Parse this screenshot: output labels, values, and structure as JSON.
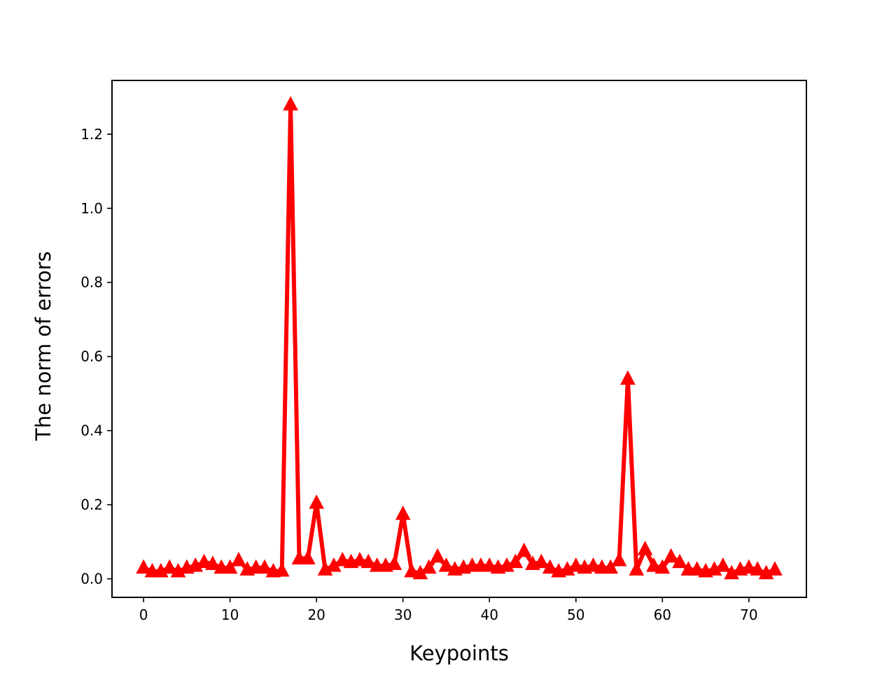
{
  "chart_data": {
    "type": "line",
    "title": "",
    "xlabel": "Keypoints",
    "ylabel": "The norm of errors",
    "xlim": [
      -3.65,
      76.65
    ],
    "ylim": [
      -0.05,
      1.345
    ],
    "xticks": [
      0,
      10,
      20,
      30,
      40,
      50,
      60,
      70
    ],
    "xtick_labels": [
      "0",
      "10",
      "20",
      "30",
      "40",
      "50",
      "60",
      "70"
    ],
    "yticks": [
      0.0,
      0.2,
      0.4,
      0.6,
      0.8,
      1.0,
      1.2
    ],
    "ytick_labels": [
      "0.0",
      "0.2",
      "0.4",
      "0.6",
      "0.8",
      "1.0",
      "1.2"
    ],
    "grid": false,
    "legend": "none",
    "series": [
      {
        "color": "#ff0000",
        "marker": "triangle-up",
        "x": [
          0,
          1,
          2,
          3,
          4,
          5,
          6,
          7,
          8,
          9,
          10,
          11,
          12,
          13,
          14,
          15,
          16,
          17,
          18,
          19,
          20,
          21,
          22,
          23,
          24,
          25,
          26,
          27,
          28,
          29,
          30,
          31,
          32,
          33,
          34,
          35,
          36,
          37,
          38,
          39,
          40,
          41,
          42,
          43,
          44,
          45,
          46,
          47,
          48,
          49,
          50,
          51,
          52,
          53,
          54,
          55,
          56,
          57,
          58,
          59,
          60,
          61,
          62,
          63,
          64,
          65,
          66,
          67,
          68,
          69,
          70,
          71,
          72,
          73
        ],
        "y": [
          0.03,
          0.02,
          0.02,
          0.03,
          0.02,
          0.03,
          0.035,
          0.045,
          0.04,
          0.03,
          0.03,
          0.05,
          0.025,
          0.03,
          0.03,
          0.02,
          0.022,
          1.28,
          0.055,
          0.055,
          0.205,
          0.025,
          0.035,
          0.05,
          0.045,
          0.05,
          0.045,
          0.035,
          0.035,
          0.04,
          0.175,
          0.02,
          0.015,
          0.03,
          0.06,
          0.035,
          0.025,
          0.03,
          0.035,
          0.035,
          0.035,
          0.03,
          0.035,
          0.045,
          0.075,
          0.04,
          0.045,
          0.03,
          0.02,
          0.025,
          0.035,
          0.03,
          0.035,
          0.03,
          0.03,
          0.05,
          0.54,
          0.025,
          0.08,
          0.035,
          0.03,
          0.06,
          0.045,
          0.025,
          0.025,
          0.02,
          0.025,
          0.035,
          0.015,
          0.025,
          0.03,
          0.025,
          0.015,
          0.025
        ]
      }
    ]
  }
}
